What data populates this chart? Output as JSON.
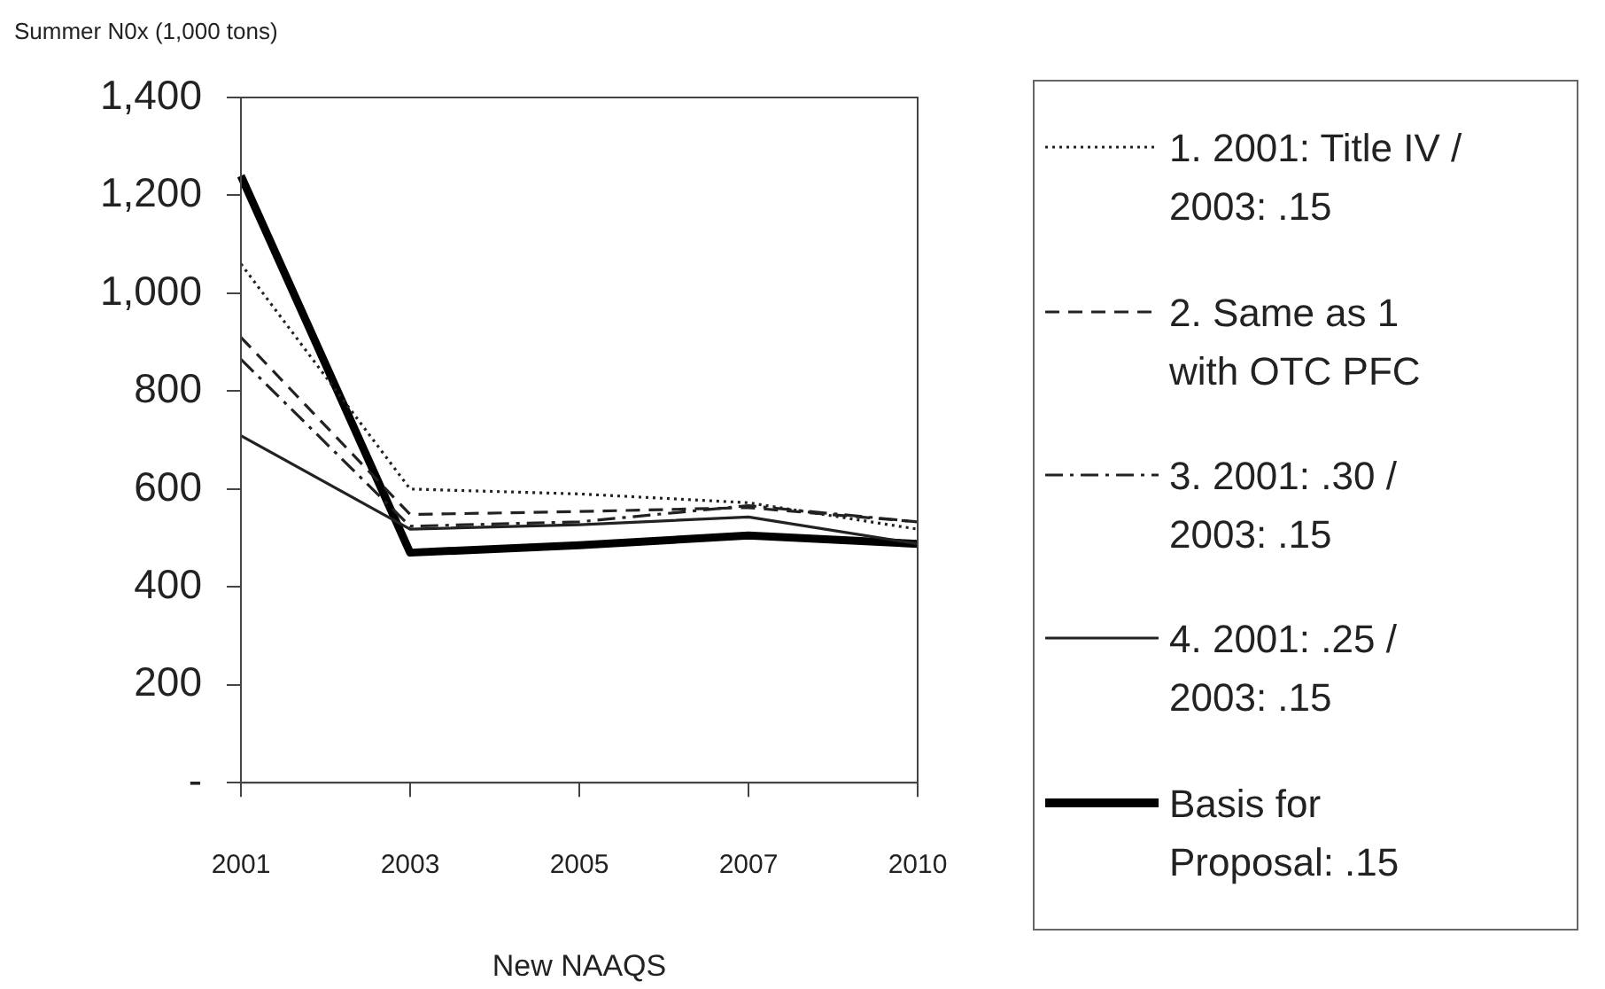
{
  "chart_data": {
    "type": "line",
    "ylabel": "Summer N0x (1,000 tons)",
    "xlabel": "New NAAQS",
    "categories": [
      "2001",
      "2003",
      "2005",
      "2007",
      "2010"
    ],
    "series": [
      {
        "name": "1. 2001: Title IV / 2003: .15",
        "color": "#222222",
        "line_style": "dotted",
        "values": [
          1060,
          600,
          590,
          572,
          518
        ]
      },
      {
        "name": "2. Same as 1 with OTC PFC",
        "color": "#222222",
        "line_style": "dashed",
        "values": [
          910,
          548,
          554,
          562,
          533
        ]
      },
      {
        "name": "3. 2001: .30  /  2003: .15",
        "color": "#222222",
        "line_style": "dashdot",
        "values": [
          865,
          524,
          533,
          566,
          533
        ]
      },
      {
        "name": "4. 2001: .25  /  2003: .15",
        "color": "#222222",
        "line_style": "solid",
        "values": [
          709,
          518,
          527,
          543,
          488
        ]
      },
      {
        "name": "Basis for Proposal: .15",
        "color": "#000000",
        "line_style": "solid",
        "values": [
          1240,
          470,
          485,
          505,
          488
        ]
      }
    ],
    "ylim": [
      0,
      1400
    ],
    "yticks": [
      {
        "value": 0,
        "label": "-"
      },
      200,
      400,
      600,
      800,
      {
        "value": 1000,
        "label": "1,000"
      },
      {
        "value": 1200,
        "label": "1,200"
      },
      {
        "value": 1400,
        "label": "1,400"
      }
    ],
    "grid": false,
    "legend": "right",
    "marker": "none"
  }
}
